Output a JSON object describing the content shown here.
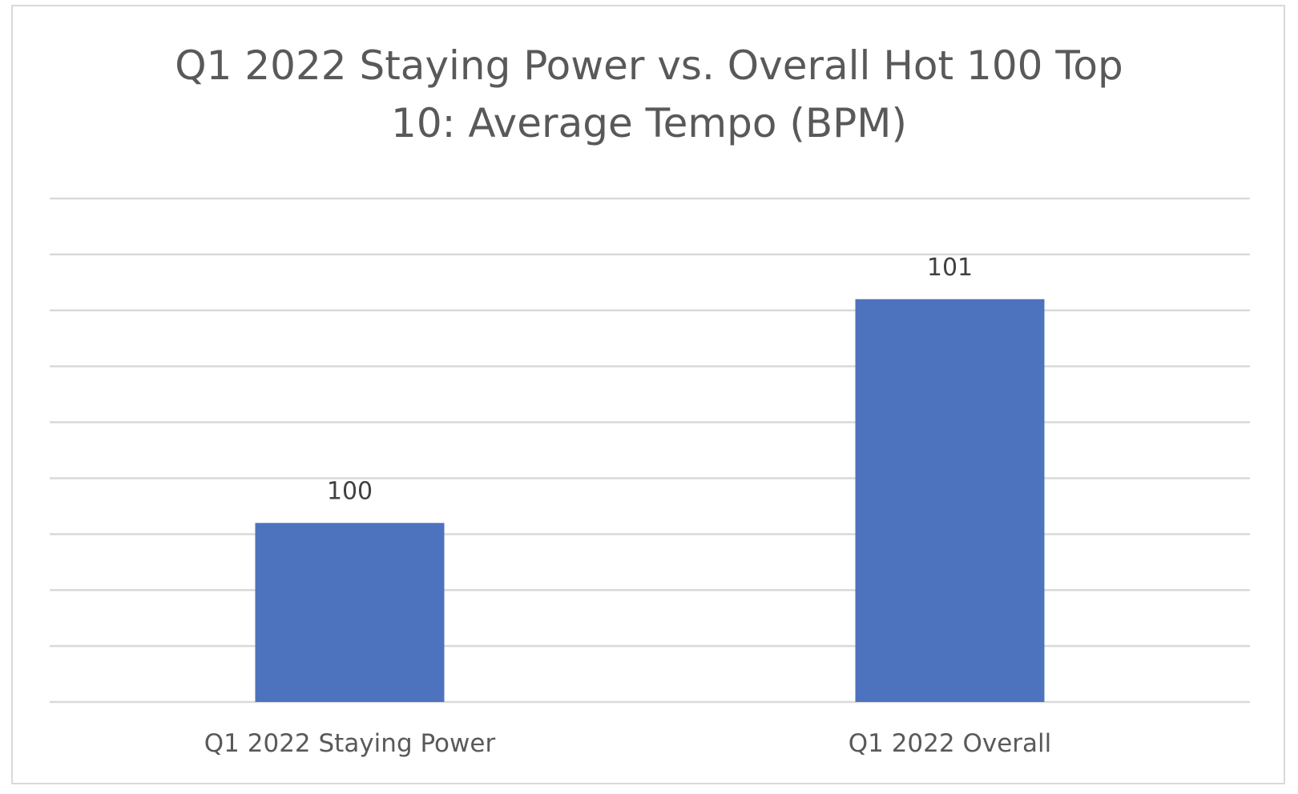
{
  "chart_data": {
    "type": "bar",
    "title": "Q1 2022 Staying Power vs. Overall Hot 100 Top 10: Average Tempo (BPM)",
    "title_lines": [
      "Q1 2022 Staying Power vs. Overall Hot 100 Top",
      "10: Average Tempo (BPM)"
    ],
    "categories": [
      "Q1 2022 Staying Power",
      "Q1 2022 Overall"
    ],
    "values": [
      100,
      101
    ],
    "data_labels": [
      "100",
      "101"
    ],
    "xlabel": "",
    "ylabel": "",
    "ylim": [
      99.2,
      101.45
    ],
    "grid": true,
    "legend": "none",
    "bar_color": "#4d72be"
  }
}
